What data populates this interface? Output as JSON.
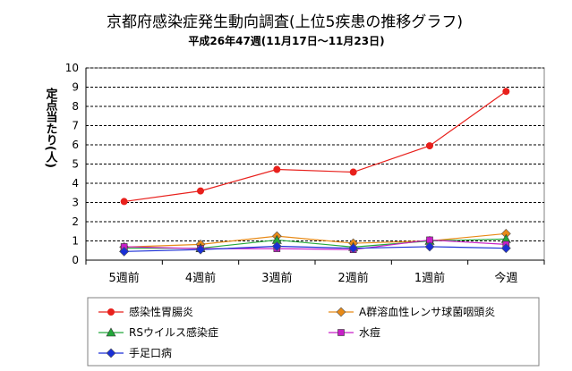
{
  "chart_data": {
    "type": "line",
    "title": "京都府感染症発生動向調査(上位5疾患の推移グラフ)",
    "subtitle": "平成26年47週(11月17日～11月23日)",
    "ylabel": "定点当たり(人)",
    "xlabel": "",
    "ylim": [
      0,
      10
    ],
    "yticks": [
      "0",
      "1",
      "2",
      "3",
      "4",
      "5",
      "6",
      "7",
      "8",
      "9",
      "10"
    ],
    "grid": true,
    "legend_position": "bottom",
    "categories": [
      "5週前",
      "4週前",
      "3週前",
      "2週前",
      "1週前",
      "今週"
    ],
    "series": [
      {
        "name": "感染性胃腸炎",
        "color": "#e8201c",
        "marker": "circle",
        "values": [
          3.05,
          3.6,
          4.72,
          4.58,
          5.95,
          8.78
        ]
      },
      {
        "name": "A群溶血性レンサ球菌咽頭炎",
        "color": "#e88a17",
        "marker": "diamond",
        "values": [
          0.68,
          0.82,
          1.25,
          0.88,
          1.0,
          1.38
        ]
      },
      {
        "name": "RSウイルス感染症",
        "color": "#22a83a",
        "marker": "triangle",
        "values": [
          0.62,
          0.62,
          1.05,
          0.68,
          1.0,
          1.1
        ]
      },
      {
        "name": "水痘",
        "color": "#c81ec8",
        "marker": "square",
        "values": [
          0.7,
          0.6,
          0.6,
          0.55,
          1.05,
          0.82
        ]
      },
      {
        "name": "手足口病",
        "color": "#1a2fd6",
        "marker": "diamond",
        "values": [
          0.45,
          0.55,
          0.72,
          0.62,
          0.7,
          0.62
        ]
      }
    ]
  }
}
